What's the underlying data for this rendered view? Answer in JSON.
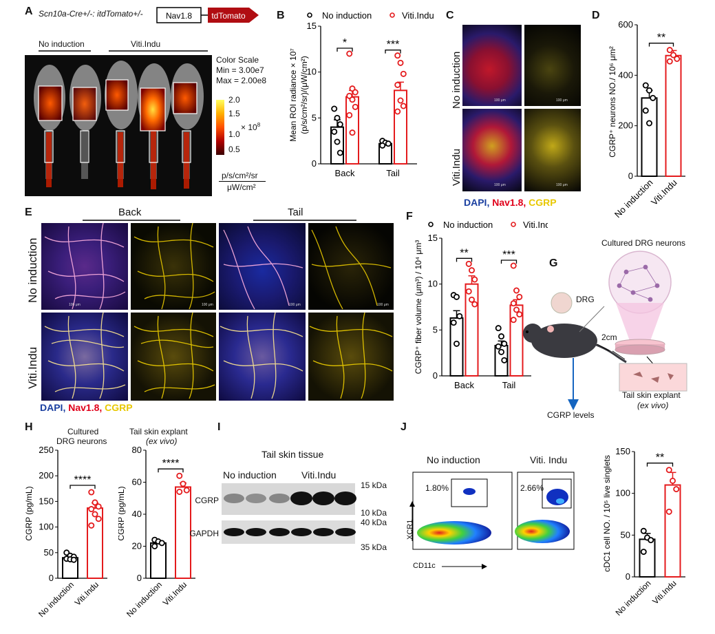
{
  "panels": {
    "A": {
      "label": "A",
      "genotype": "Scn10a-Cre+/-: itdTomato+/-",
      "construct_nav": "Nav1.8",
      "construct_tdtomato": "tdTomato",
      "group_no": "No induction",
      "group_viti": "Viti.Indu",
      "scale_title": "Color Scale",
      "scale_min": "Min = 3.00e7",
      "scale_max": "Max = 2.00e8",
      "scale_ticks": [
        "2.0",
        "1.5",
        "1.0",
        "0.5"
      ],
      "scale_mult": "× 10",
      "scale_mult_exp": "8",
      "unit_top": "p/s/cm²/sr",
      "unit_bottom": "μW/cm²"
    },
    "C": {
      "label": "C",
      "row_no": "No induction",
      "row_viti": "Viti.Indu",
      "legend_dapi": "DAPI,",
      "legend_nav": "Nav1.8,",
      "legend_cgrp": "CGRP",
      "scale_text": "100 μm"
    },
    "E": {
      "label": "E",
      "col_back": "Back",
      "col_tail": "Tail",
      "row_no": "No induction",
      "row_viti": "Viti.Indu",
      "legend_dapi": "DAPI,",
      "legend_nav": "Nav1.8,",
      "legend_cgrp": "CGRP",
      "scale_text": "100 μm"
    },
    "G": {
      "label": "G",
      "cultured": "Cultured DRG neurons",
      "drg": "DRG",
      "dist": "2cm",
      "explant": "Tail skin explant",
      "exvivo": "(ex vivo)",
      "levels": "CGRP levels"
    },
    "H": {
      "label": "H",
      "sub1_line1": "Cultured",
      "sub1_line2": "DRG neurons",
      "sub2_line1": "Tail skin explant",
      "sub2_line2": "(ex vivo)"
    },
    "I": {
      "label": "I",
      "title": "Tail skin tissue",
      "group_no": "No induction",
      "group_viti": "Viti.Indu",
      "band1": "CGRP",
      "band2": "GAPDH",
      "kda": [
        "15 kDa",
        "10 kDa",
        "40 kDa",
        "35 kDa"
      ]
    },
    "J": {
      "label": "J",
      "flow_no": "No induction",
      "flow_viti": "Viti. Indu",
      "gate_no": "1.80%",
      "gate_viti": "2.66%",
      "x_axis": "CD11c",
      "y_axis": "XCR1"
    }
  },
  "chart_data": [
    {
      "id": "B",
      "type": "bar",
      "label": "B",
      "legend": [
        "No induction",
        "Viti.Indu"
      ],
      "categories": [
        "Back",
        "Tail"
      ],
      "ylabel": "Mean ROI radiance × 10^7 (p/s/cm²/sr)/(μW/cm²)",
      "ylim": [
        0,
        15
      ],
      "yticks": [
        0,
        5,
        10,
        15
      ],
      "series": [
        {
          "name": "No induction",
          "color": "#000000",
          "values": [
            4.0,
            2.2
          ],
          "errors": [
            0.8,
            0.2
          ],
          "points": [
            [
              6.0,
              5.0,
              4.3,
              3.5,
              2.4,
              1.2
            ],
            [
              2.5,
              2.3,
              2.2,
              2.0
            ]
          ]
        },
        {
          "name": "Viti.Indu",
          "color": "#e41a1c",
          "values": [
            7.3,
            8.0
          ],
          "errors": [
            0.7,
            0.9
          ],
          "points": [
            [
              12.0,
              8.2,
              7.8,
              7.4,
              7.0,
              6.2,
              5.3,
              3.4
            ],
            [
              11.8,
              11.0,
              9.8,
              8.6,
              6.9,
              6.3,
              5.7
            ]
          ]
        }
      ],
      "significance": [
        "*",
        "***"
      ]
    },
    {
      "id": "D",
      "type": "bar",
      "label": "D",
      "categories": [
        "No induction",
        "Viti.Indu"
      ],
      "ylabel": "CGRP+ neurons NO./ 10^6 μm²",
      "ylim": [
        0,
        600
      ],
      "yticks": [
        0,
        200,
        400,
        600
      ],
      "values": [
        310,
        478
      ],
      "errors": [
        30,
        20
      ],
      "colors": [
        "#000000",
        "#e41a1c"
      ],
      "points": [
        [
          360,
          340,
          310,
          260,
          210
        ],
        [
          500,
          480,
          465,
          455
        ]
      ],
      "significance": "**"
    },
    {
      "id": "F",
      "type": "bar",
      "label": "F",
      "legend": [
        "No induction",
        "Viti.Indu"
      ],
      "categories": [
        "Back",
        "Tail"
      ],
      "ylabel": "CGRP+ fiber volume (μm³) / 10^4 μm³",
      "ylim": [
        0,
        15
      ],
      "yticks": [
        0,
        5,
        10,
        15
      ],
      "series": [
        {
          "name": "No induction",
          "color": "#000000",
          "values": [
            6.3,
            3.3
          ],
          "errors": [
            0.8,
            0.5
          ],
          "points": [
            [
              8.8,
              8.6,
              6.5,
              5.8,
              3.5
            ],
            [
              5.2,
              4.3,
              3.5,
              3.2,
              2.6,
              1.7
            ]
          ]
        },
        {
          "name": "Viti.Indu",
          "color": "#e41a1c",
          "values": [
            10.0,
            7.7
          ],
          "errors": [
            0.9,
            0.6
          ],
          "points": [
            [
              12.2,
              11.5,
              10.5,
              9.2,
              8.3,
              7.8
            ],
            [
              12.0,
              9.3,
              8.6,
              7.9,
              7.2,
              6.7,
              6.1
            ]
          ]
        }
      ],
      "significance": [
        "**",
        "***"
      ]
    },
    {
      "id": "H1",
      "type": "bar",
      "label": "H",
      "categories": [
        "No induction",
        "Viti.Indu"
      ],
      "ylabel": "CGRP (pg/mL)",
      "ylim": [
        0,
        250
      ],
      "yticks": [
        0,
        50,
        100,
        150,
        200,
        250
      ],
      "values": [
        40,
        137
      ],
      "errors": [
        3,
        10
      ],
      "colors": [
        "#000000",
        "#e41a1c"
      ],
      "points": [
        [
          50,
          44,
          42,
          38,
          37,
          36
        ],
        [
          168,
          148,
          140,
          135,
          125,
          116,
          103
        ]
      ],
      "significance": "****"
    },
    {
      "id": "H2",
      "type": "bar",
      "categories": [
        "No induction",
        "Viti.Indu"
      ],
      "ylabel": "CGRP (pg/mL)",
      "ylim": [
        0,
        80
      ],
      "yticks": [
        0,
        20,
        40,
        60,
        80
      ],
      "values": [
        22,
        57
      ],
      "errors": [
        1.5,
        2.5
      ],
      "colors": [
        "#000000",
        "#e41a1c"
      ],
      "points": [
        [
          24,
          23,
          22,
          20
        ],
        [
          64,
          59,
          55,
          54
        ]
      ],
      "significance": "****"
    },
    {
      "id": "J",
      "type": "bar",
      "categories": [
        "No induction",
        "Viti.Indu"
      ],
      "ylabel": "cDC1 cell NO. / 10^5 live singlets",
      "ylim": [
        0,
        150
      ],
      "yticks": [
        0,
        50,
        100,
        150
      ],
      "values": [
        45,
        110
      ],
      "errors": [
        7,
        15
      ],
      "colors": [
        "#000000",
        "#e41a1c"
      ],
      "points": [
        [
          55,
          47,
          44,
          30
        ],
        [
          128,
          115,
          105,
          78
        ]
      ],
      "significance": "**"
    }
  ]
}
